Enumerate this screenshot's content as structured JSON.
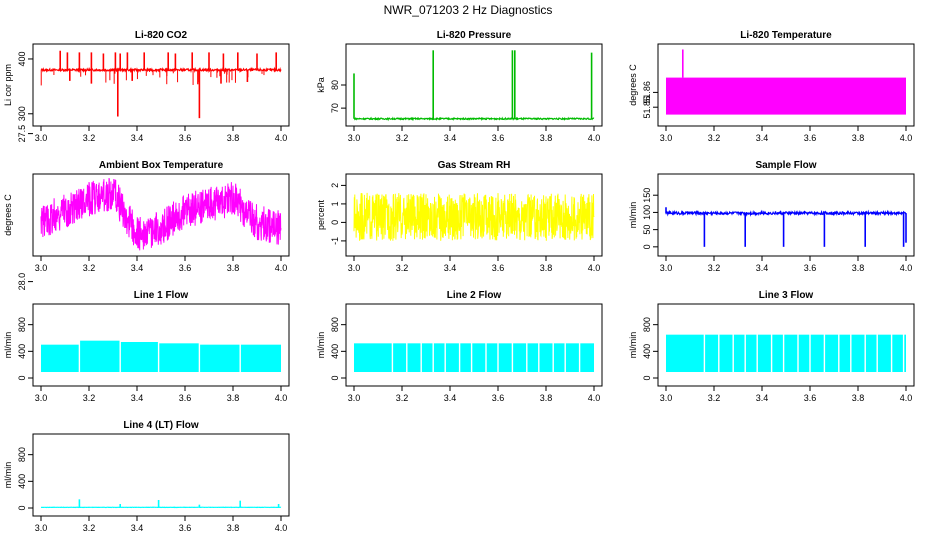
{
  "page_title": "NWR_071203  2 Hz Diagnostics",
  "chart_data": [
    {
      "type": "line",
      "title": "Li-820 CO2",
      "ylabel": "Li cor ppm",
      "xlim": [
        3.0,
        4.0
      ],
      "ylim": [
        285,
        420
      ],
      "xticks": [
        "3.0",
        "3.2",
        "3.4",
        "3.6",
        "3.8",
        "4.0"
      ],
      "yticks": [
        300,
        400
      ],
      "color": "#ff0000",
      "style": "spiky",
      "baseline": 380,
      "noise": 2,
      "spikes": [
        [
          3.08,
          415
        ],
        [
          3.11,
          412
        ],
        [
          3.16,
          412
        ],
        [
          3.21,
          412
        ],
        [
          3.26,
          410
        ],
        [
          3.31,
          412
        ],
        [
          3.33,
          410
        ],
        [
          3.36,
          412
        ],
        [
          3.43,
          412
        ],
        [
          3.53,
          412
        ],
        [
          3.56,
          410
        ],
        [
          3.63,
          412
        ],
        [
          3.7,
          412
        ],
        [
          3.76,
          410
        ],
        [
          3.82,
          412
        ],
        [
          3.9,
          410
        ],
        [
          3.98,
          412
        ],
        [
          3.12,
          360
        ],
        [
          3.21,
          355
        ],
        [
          3.32,
          295
        ],
        [
          3.38,
          360
        ],
        [
          3.66,
          292
        ],
        [
          3.75,
          355
        ],
        [
          3.86,
          358
        ]
      ],
      "dense_down": 350
    },
    {
      "type": "line",
      "title": "Li-820 Pressure",
      "ylabel": "kPa",
      "xlim": [
        3.0,
        4.0
      ],
      "ylim": [
        64,
        96
      ],
      "xticks": [
        "3.0",
        "3.2",
        "3.4",
        "3.6",
        "3.8",
        "4.0"
      ],
      "yticks": [
        70,
        80
      ],
      "color": "#00bb00",
      "style": "spiky",
      "baseline": 65.4,
      "noise": 0.3,
      "spikes": [
        [
          3.0,
          85
        ],
        [
          3.33,
          95
        ],
        [
          3.66,
          95
        ],
        [
          3.67,
          95
        ],
        [
          3.99,
          94
        ]
      ]
    },
    {
      "type": "area",
      "title": "Li-820 Temperature",
      "ylabel": "degrees C",
      "xlim": [
        3.0,
        4.0
      ],
      "ylim": [
        51.84,
        51.89
      ],
      "xticks": [
        "3.0",
        "3.2",
        "3.4",
        "3.6",
        "3.8",
        "4.0"
      ],
      "yticks": [
        "51.85",
        "51.86"
      ],
      "color": "#ff00ff",
      "style": "block",
      "low": 51.845,
      "high": 51.87,
      "spikes": [
        [
          3.07,
          51.889
        ]
      ]
    },
    {
      "type": "line",
      "title": "Ambient Box Temperature",
      "ylabel": "degrees C",
      "xlim": [
        3.0,
        4.0
      ],
      "ylim": [
        27.9,
        27.65
      ],
      "xticks": [
        "3.0",
        "3.2",
        "3.4",
        "3.6",
        "3.8",
        "4.0"
      ],
      "yticks": [
        "28.0",
        "27.5"
      ],
      "color": "#ff00ff",
      "style": "noisy",
      "trend": [
        [
          3.0,
          27.8
        ],
        [
          3.1,
          27.76
        ],
        [
          3.2,
          27.72
        ],
        [
          3.3,
          27.7
        ],
        [
          3.4,
          27.84
        ],
        [
          3.5,
          27.82
        ],
        [
          3.6,
          27.76
        ],
        [
          3.7,
          27.74
        ],
        [
          3.8,
          27.72
        ],
        [
          3.9,
          27.8
        ],
        [
          4.0,
          27.82
        ]
      ],
      "noise": 0.06
    },
    {
      "type": "line",
      "title": "Gas Stream RH",
      "ylabel": "percent",
      "xlim": [
        3.0,
        4.0
      ],
      "ylim": [
        -1.6,
        2.4
      ],
      "xticks": [
        "3.0",
        "3.2",
        "3.4",
        "3.6",
        "3.8",
        "4.0"
      ],
      "yticks": [
        -1,
        0,
        1,
        2
      ],
      "color": "#ffff00",
      "style": "noisy",
      "trend": [
        [
          3.0,
          0.3
        ],
        [
          4.0,
          0.3
        ]
      ],
      "noise": 1.3
    },
    {
      "type": "line",
      "title": "Sample Flow",
      "ylabel": "ml/min",
      "xlim": [
        3.0,
        4.0
      ],
      "ylim": [
        -15,
        200
      ],
      "xticks": [
        "3.0",
        "3.2",
        "3.4",
        "3.6",
        "3.8",
        "4.0"
      ],
      "yticks": [
        0,
        50,
        100,
        150
      ],
      "color": "#0000ff",
      "style": "spiky",
      "baseline": 98,
      "noise": 4,
      "spikes": [
        [
          3.0,
          115
        ],
        [
          3.16,
          0
        ],
        [
          3.33,
          0
        ],
        [
          3.49,
          0
        ],
        [
          3.66,
          0
        ],
        [
          3.83,
          0
        ],
        [
          3.99,
          0
        ],
        [
          4.0,
          12
        ]
      ]
    },
    {
      "type": "area",
      "title": "Line 1 Flow",
      "ylabel": "ml/min",
      "xlim": [
        3.0,
        4.0
      ],
      "ylim": [
        -60,
        1050
      ],
      "xticks": [
        "3.0",
        "3.2",
        "3.4",
        "3.6",
        "3.8",
        "4.0"
      ],
      "yticks": [
        0,
        400,
        800
      ],
      "color": "#00ffff",
      "style": "band",
      "low": 90,
      "segments": [
        [
          3.0,
          3.16,
          500
        ],
        [
          3.16,
          3.33,
          560
        ],
        [
          3.33,
          3.49,
          540
        ],
        [
          3.49,
          3.66,
          520
        ],
        [
          3.66,
          3.83,
          500
        ],
        [
          3.83,
          4.0,
          500
        ]
      ],
      "gaps": [
        3.16,
        3.33,
        3.49,
        3.66,
        3.83
      ]
    },
    {
      "type": "area",
      "title": "Line 2 Flow",
      "ylabel": "ml/min",
      "xlim": [
        3.0,
        4.0
      ],
      "ylim": [
        -60,
        1050
      ],
      "xticks": [
        "3.0",
        "3.2",
        "3.4",
        "3.6",
        "3.8",
        "4.0"
      ],
      "yticks": [
        0,
        400,
        800
      ],
      "color": "#00ffff",
      "style": "band",
      "low": 90,
      "segments": [
        [
          3.0,
          4.0,
          520
        ]
      ],
      "gaps": [
        3.16,
        3.22,
        3.28,
        3.33,
        3.38,
        3.44,
        3.49,
        3.55,
        3.6,
        3.66,
        3.72,
        3.77,
        3.83,
        3.88,
        3.94
      ]
    },
    {
      "type": "area",
      "title": "Line 3 Flow",
      "ylabel": "ml/min",
      "xlim": [
        3.0,
        4.0
      ],
      "ylim": [
        -60,
        1050
      ],
      "xticks": [
        "3.0",
        "3.2",
        "3.4",
        "3.6",
        "3.8",
        "4.0"
      ],
      "yticks": [
        0,
        400,
        800
      ],
      "color": "#00ffff",
      "style": "band",
      "low": 90,
      "segments": [
        [
          3.0,
          4.0,
          650
        ]
      ],
      "gaps": [
        3.16,
        3.22,
        3.28,
        3.33,
        3.38,
        3.44,
        3.49,
        3.55,
        3.6,
        3.66,
        3.72,
        3.77,
        3.83,
        3.88,
        3.94,
        3.99
      ]
    },
    {
      "type": "line",
      "title": "Line 4 (LT) Flow",
      "ylabel": "ml/min",
      "xlim": [
        3.0,
        4.0
      ],
      "ylim": [
        -60,
        1050
      ],
      "xticks": [
        "3.0",
        "3.2",
        "3.4",
        "3.6",
        "3.8",
        "4.0"
      ],
      "yticks": [
        0,
        400,
        800
      ],
      "color": "#00ffff",
      "style": "spiky",
      "baseline": 10,
      "noise": 2,
      "spikes": [
        [
          3.16,
          130
        ],
        [
          3.33,
          60
        ],
        [
          3.49,
          120
        ],
        [
          3.66,
          50
        ],
        [
          3.83,
          110
        ],
        [
          3.99,
          60
        ]
      ]
    }
  ]
}
